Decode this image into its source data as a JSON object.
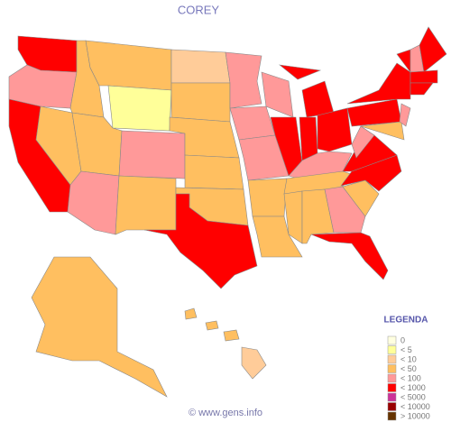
{
  "title": "COREY",
  "legend": {
    "title": "LEGENDA",
    "items": [
      {
        "label": "0",
        "color": "#ffffe0"
      },
      {
        "label": "< 5",
        "color": "#ffff99"
      },
      {
        "label": "< 10",
        "color": "#ffcc99"
      },
      {
        "label": "< 50",
        "color": "#ffbf60"
      },
      {
        "label": "< 100",
        "color": "#ff9999"
      },
      {
        "label": "< 1000",
        "color": "#ff0000"
      },
      {
        "label": "< 5000",
        "color": "#cc3399"
      },
      {
        "label": "< 10000",
        "color": "#990000"
      },
      {
        "label": "> 10000",
        "color": "#663300"
      }
    ]
  },
  "footer": "© www.gens.info"
}
